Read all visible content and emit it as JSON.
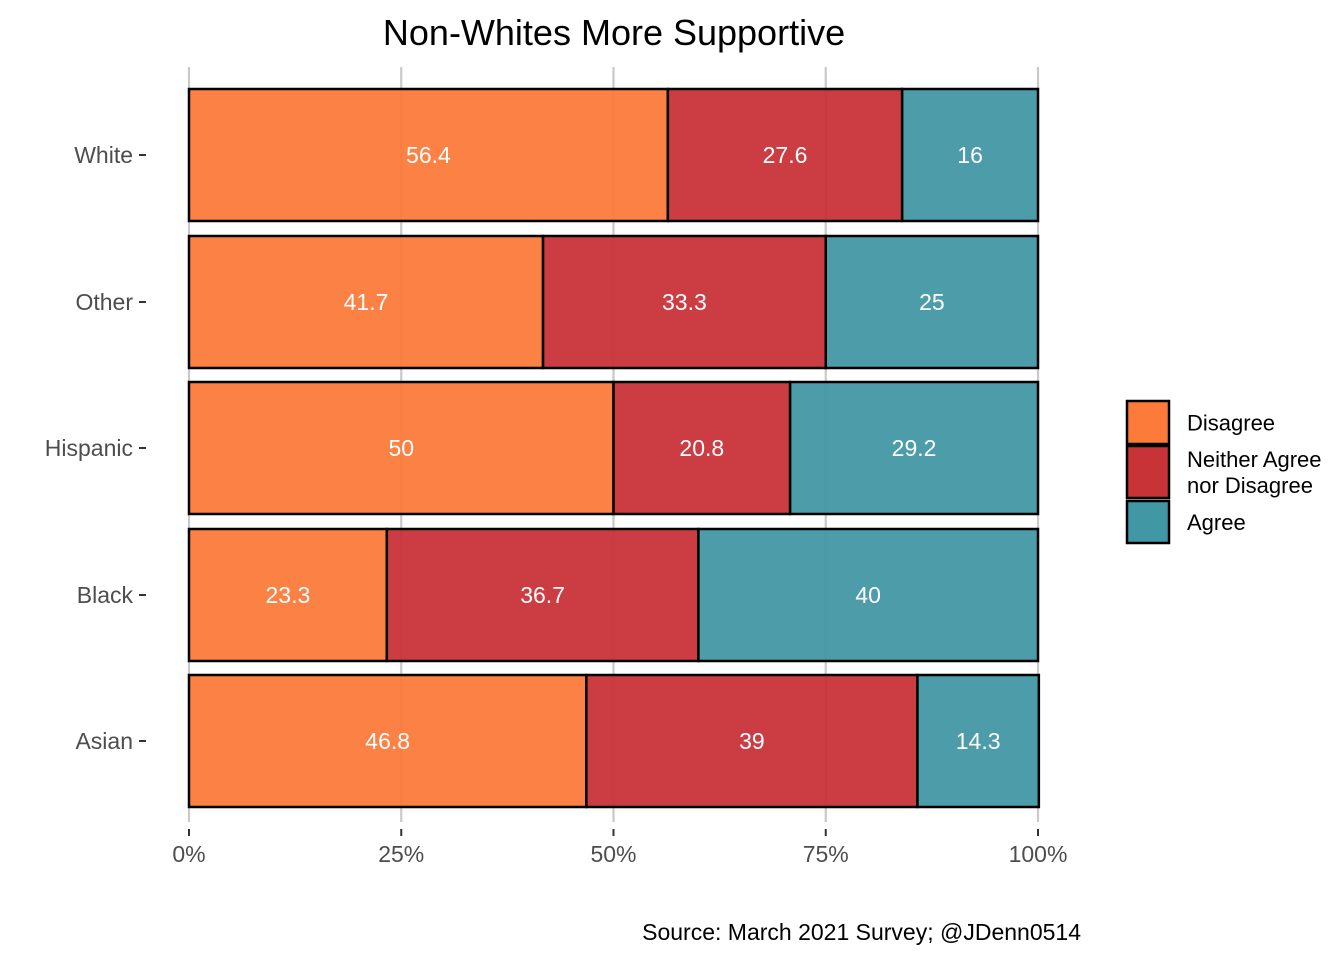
{
  "chart_data": {
    "type": "bar",
    "orientation": "horizontal",
    "stacked": "percent",
    "title": "Non-Whites More Supportive",
    "caption": "Source: March 2021 Survey; @JDenn0514",
    "categories": [
      "White",
      "Other",
      "Hispanic",
      "Black",
      "Asian"
    ],
    "series": [
      {
        "name": "Disagree",
        "color": "#fc7a3a",
        "values": [
          56.4,
          41.7,
          50,
          23.3,
          46.8
        ],
        "labels": [
          "56.4",
          "41.7",
          "50",
          "23.3",
          "46.8"
        ]
      },
      {
        "name": "Neither Agree nor Disagree",
        "color": "#c83338",
        "values": [
          27.6,
          33.3,
          20.8,
          36.7,
          39
        ],
        "labels": [
          "27.6",
          "33.3",
          "20.8",
          "36.7",
          "39"
        ]
      },
      {
        "name": "Agree",
        "color": "#4297a5",
        "values": [
          16,
          25,
          29.2,
          40,
          14.3
        ],
        "labels": [
          "16",
          "25",
          "29.2",
          "40",
          "14.3"
        ]
      }
    ],
    "legend_labels": [
      [
        "Disagree"
      ],
      [
        "Neither Agree",
        "nor Disagree"
      ],
      [
        "Agree"
      ]
    ],
    "x_ticks": [
      0,
      25,
      50,
      75,
      100
    ],
    "x_tick_labels": [
      "0%",
      "25%",
      "50%",
      "75%",
      "100%"
    ],
    "xlim": [
      0,
      100
    ],
    "grid": "vertical-major",
    "legend_position": "right"
  }
}
